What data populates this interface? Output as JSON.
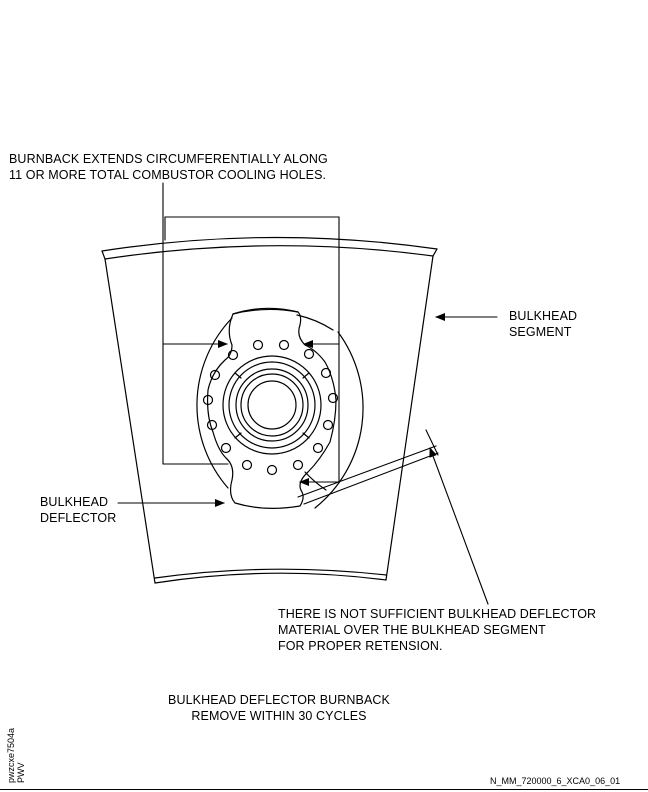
{
  "callouts": {
    "burnback": [
      "BURNBACK EXTENDS CIRCUMFERENTIALLY ALONG",
      "11 OR MORE TOTAL COMBUSTOR COOLING HOLES."
    ],
    "bulkhead_segment": [
      "BULKHEAD",
      "SEGMENT"
    ],
    "bulkhead_deflector": [
      "BULKHEAD",
      "DEFLECTOR"
    ],
    "insufficient": [
      "THERE IS NOT SUFFICIENT BULKHEAD DEFLECTOR",
      "MATERIAL OVER THE BULKHEAD SEGMENT",
      "FOR PROPER RETENSION."
    ]
  },
  "caption": [
    "BULKHEAD DEFLECTOR BURNBACK",
    "REMOVE WITHIN 30 CYCLES"
  ],
  "side_codes": [
    "pwzcxe7504a",
    "PWV"
  ],
  "figure_id": "N_MM_720000_6_XCA0_06_01"
}
